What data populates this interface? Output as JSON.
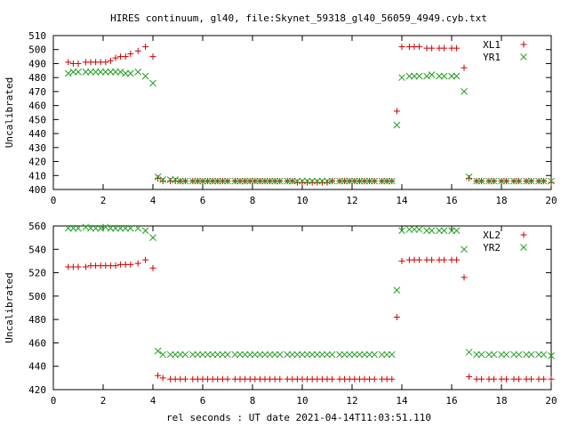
{
  "title": "HIRES continuum, gl40, file:Skynet_59318_gl40_56059_4949.cyb.txt",
  "xlabel": "rel seconds : UT date 2021-04-14T11:03:51.110",
  "colors": {
    "red": "#d00000",
    "green": "#20a020",
    "axis": "#000000"
  },
  "chart_data": [
    {
      "type": "scatter",
      "ylabel": "Uncalibrated",
      "xlim": [
        0,
        20
      ],
      "ylim": [
        400,
        510
      ],
      "xticks": [
        0,
        2,
        4,
        6,
        8,
        10,
        12,
        14,
        16,
        18,
        20
      ],
      "yticks": [
        400,
        410,
        420,
        430,
        440,
        450,
        460,
        470,
        480,
        490,
        500,
        510
      ],
      "legend_position": "top-right",
      "series": [
        {
          "name": "XL1",
          "marker": "plus",
          "color": "#d00000",
          "x": [
            0.6,
            0.8,
            1.0,
            1.3,
            1.5,
            1.7,
            1.9,
            2.1,
            2.3,
            2.5,
            2.7,
            2.9,
            3.1,
            3.4,
            3.7,
            4.0,
            4.2,
            4.4,
            4.7,
            4.9,
            5.1,
            5.3,
            5.6,
            5.8,
            6.0,
            6.2,
            6.4,
            6.6,
            6.8,
            7.0,
            7.3,
            7.5,
            7.7,
            7.9,
            8.1,
            8.3,
            8.5,
            8.7,
            8.9,
            9.1,
            9.4,
            9.6,
            9.8,
            10.0,
            10.2,
            10.4,
            10.6,
            10.8,
            11.0,
            11.2,
            11.5,
            11.7,
            11.9,
            12.1,
            12.3,
            12.5,
            12.7,
            12.9,
            13.2,
            13.4,
            13.6,
            13.8,
            14.0,
            14.3,
            14.5,
            14.7,
            15.0,
            15.2,
            15.5,
            15.7,
            16.0,
            16.2,
            16.5,
            16.7,
            17.0,
            17.2,
            17.5,
            17.7,
            18.0,
            18.2,
            18.5,
            18.7,
            19.0,
            19.2,
            19.5,
            19.7,
            20.0
          ],
          "y": [
            491,
            490,
            490,
            491,
            491,
            491,
            491,
            491,
            492,
            494,
            495,
            495,
            497,
            499,
            502,
            495,
            408,
            406,
            406,
            406,
            406,
            406,
            406,
            406,
            406,
            406,
            406,
            406,
            406,
            406,
            406,
            406,
            406,
            406,
            406,
            406,
            406,
            406,
            406,
            406,
            406,
            406,
            405,
            405,
            405,
            405,
            405,
            405,
            405,
            406,
            406,
            406,
            406,
            406,
            406,
            406,
            406,
            406,
            406,
            406,
            406,
            456,
            502,
            502,
            502,
            502,
            501,
            501,
            501,
            501,
            501,
            501,
            487,
            408,
            406,
            406,
            406,
            406,
            406,
            406,
            406,
            406,
            406,
            406,
            406,
            406,
            405
          ]
        },
        {
          "name": "YR1",
          "marker": "cross",
          "color": "#20a020",
          "x": [
            0.6,
            0.8,
            1.0,
            1.3,
            1.5,
            1.7,
            1.9,
            2.1,
            2.3,
            2.5,
            2.7,
            2.9,
            3.1,
            3.4,
            3.7,
            4.0,
            4.2,
            4.4,
            4.7,
            4.9,
            5.1,
            5.3,
            5.6,
            5.8,
            6.0,
            6.2,
            6.4,
            6.6,
            6.8,
            7.0,
            7.3,
            7.5,
            7.7,
            7.9,
            8.1,
            8.3,
            8.5,
            8.7,
            8.9,
            9.1,
            9.4,
            9.6,
            9.8,
            10.0,
            10.2,
            10.4,
            10.6,
            10.8,
            11.0,
            11.2,
            11.5,
            11.7,
            11.9,
            12.1,
            12.3,
            12.5,
            12.7,
            12.9,
            13.2,
            13.4,
            13.6,
            13.8,
            14.0,
            14.3,
            14.5,
            14.7,
            15.0,
            15.2,
            15.5,
            15.7,
            16.0,
            16.2,
            16.5,
            16.7,
            17.0,
            17.2,
            17.5,
            17.7,
            18.0,
            18.2,
            18.5,
            18.7,
            19.0,
            19.2,
            19.5,
            19.7,
            20.0
          ],
          "y": [
            483,
            484,
            484,
            484,
            484,
            484,
            484,
            484,
            484,
            484,
            484,
            483,
            483,
            484,
            481,
            476,
            409,
            407,
            407,
            407,
            406,
            406,
            406,
            406,
            406,
            406,
            406,
            406,
            406,
            406,
            406,
            406,
            406,
            406,
            406,
            406,
            406,
            406,
            406,
            406,
            406,
            406,
            406,
            406,
            406,
            406,
            406,
            406,
            406,
            406,
            406,
            406,
            406,
            406,
            406,
            406,
            406,
            406,
            406,
            406,
            406,
            446,
            480,
            481,
            481,
            481,
            481,
            482,
            481,
            481,
            481,
            481,
            470,
            409,
            406,
            406,
            406,
            406,
            406,
            406,
            406,
            406,
            406,
            406,
            406,
            406,
            406
          ]
        }
      ]
    },
    {
      "type": "scatter",
      "ylabel": "Uncalibrated",
      "xlim": [
        0,
        20
      ],
      "ylim": [
        420,
        560
      ],
      "xticks": [
        0,
        2,
        4,
        6,
        8,
        10,
        12,
        14,
        16,
        18,
        20
      ],
      "yticks": [
        420,
        440,
        460,
        480,
        500,
        520,
        540,
        560
      ],
      "legend_position": "top-right",
      "series": [
        {
          "name": "XL2",
          "marker": "plus",
          "color": "#d00000",
          "x": [
            0.6,
            0.8,
            1.0,
            1.3,
            1.5,
            1.7,
            1.9,
            2.1,
            2.3,
            2.5,
            2.7,
            2.9,
            3.1,
            3.4,
            3.7,
            4.0,
            4.2,
            4.4,
            4.7,
            4.9,
            5.1,
            5.3,
            5.6,
            5.8,
            6.0,
            6.2,
            6.4,
            6.6,
            6.8,
            7.0,
            7.3,
            7.5,
            7.7,
            7.9,
            8.1,
            8.3,
            8.5,
            8.7,
            8.9,
            9.1,
            9.4,
            9.6,
            9.8,
            10.0,
            10.2,
            10.4,
            10.6,
            10.8,
            11.0,
            11.2,
            11.5,
            11.7,
            11.9,
            12.1,
            12.3,
            12.5,
            12.7,
            12.9,
            13.2,
            13.4,
            13.6,
            13.8,
            14.0,
            14.3,
            14.5,
            14.7,
            15.0,
            15.2,
            15.5,
            15.7,
            16.0,
            16.2,
            16.5,
            16.7,
            17.0,
            17.2,
            17.5,
            17.7,
            18.0,
            18.2,
            18.5,
            18.7,
            19.0,
            19.2,
            19.5,
            19.7,
            20.0
          ],
          "y": [
            525,
            525,
            525,
            525,
            526,
            526,
            526,
            526,
            526,
            526,
            527,
            527,
            527,
            528,
            531,
            524,
            432,
            430,
            429,
            429,
            429,
            429,
            429,
            429,
            429,
            429,
            429,
            429,
            429,
            429,
            429,
            429,
            429,
            429,
            429,
            429,
            429,
            429,
            429,
            429,
            429,
            429,
            429,
            429,
            429,
            429,
            429,
            429,
            429,
            429,
            429,
            429,
            429,
            429,
            429,
            429,
            429,
            429,
            429,
            429,
            429,
            482,
            530,
            531,
            531,
            531,
            531,
            531,
            531,
            531,
            531,
            531,
            516,
            431,
            429,
            429,
            429,
            429,
            429,
            429,
            429,
            429,
            429,
            429,
            429,
            429,
            429
          ]
        },
        {
          "name": "YR2",
          "marker": "cross",
          "color": "#20a020",
          "x": [
            0.6,
            0.8,
            1.0,
            1.3,
            1.5,
            1.7,
            1.9,
            2.1,
            2.3,
            2.5,
            2.7,
            2.9,
            3.1,
            3.4,
            3.7,
            4.0,
            4.2,
            4.4,
            4.7,
            4.9,
            5.1,
            5.3,
            5.6,
            5.8,
            6.0,
            6.2,
            6.4,
            6.6,
            6.8,
            7.0,
            7.3,
            7.5,
            7.7,
            7.9,
            8.1,
            8.3,
            8.5,
            8.7,
            8.9,
            9.1,
            9.4,
            9.6,
            9.8,
            10.0,
            10.2,
            10.4,
            10.6,
            10.8,
            11.0,
            11.2,
            11.5,
            11.7,
            11.9,
            12.1,
            12.3,
            12.5,
            12.7,
            12.9,
            13.2,
            13.4,
            13.6,
            13.8,
            14.0,
            14.3,
            14.5,
            14.7,
            15.0,
            15.2,
            15.5,
            15.7,
            16.0,
            16.2,
            16.5,
            16.7,
            17.0,
            17.2,
            17.5,
            17.7,
            18.0,
            18.2,
            18.5,
            18.7,
            19.0,
            19.2,
            19.5,
            19.7,
            20.0
          ],
          "y": [
            558,
            558,
            558,
            559,
            558,
            558,
            558,
            559,
            558,
            558,
            558,
            558,
            558,
            558,
            556,
            550,
            453,
            450,
            450,
            450,
            450,
            450,
            450,
            450,
            450,
            450,
            450,
            450,
            450,
            450,
            450,
            450,
            450,
            450,
            450,
            450,
            450,
            450,
            450,
            450,
            450,
            450,
            450,
            450,
            450,
            450,
            450,
            450,
            450,
            450,
            450,
            450,
            450,
            450,
            450,
            450,
            450,
            450,
            450,
            450,
            450,
            505,
            556,
            557,
            557,
            557,
            556,
            556,
            556,
            556,
            556,
            556,
            540,
            452,
            450,
            450,
            450,
            450,
            450,
            450,
            450,
            450,
            450,
            450,
            450,
            450,
            449
          ]
        }
      ]
    }
  ]
}
